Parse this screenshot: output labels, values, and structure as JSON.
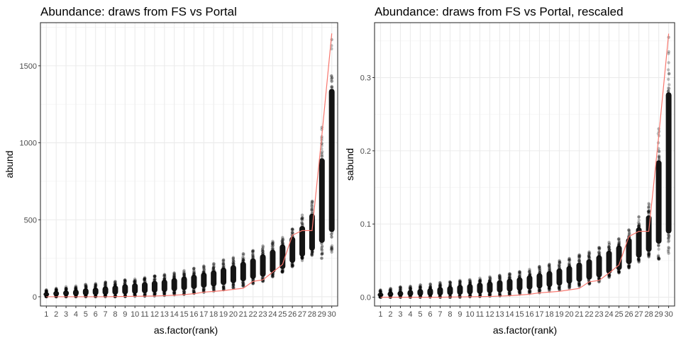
{
  "chart_data": [
    {
      "type": "scatter",
      "title": "Abundance: draws from FS vs Portal",
      "xlabel": "as.factor(rank)",
      "ylabel": "abund",
      "categories": [
        "1",
        "2",
        "3",
        "4",
        "5",
        "6",
        "7",
        "8",
        "9",
        "10",
        "11",
        "12",
        "13",
        "14",
        "15",
        "16",
        "17",
        "18",
        "19",
        "20",
        "21",
        "22",
        "23",
        "24",
        "25",
        "26",
        "27",
        "28",
        "29",
        "30"
      ],
      "ylim": [
        -60,
        1780
      ],
      "yticks": [
        0,
        500,
        1000,
        1500
      ],
      "grid": true,
      "point_color": "#000000",
      "line_color": "#F8766D",
      "series": [
        {
          "kind": "points-range",
          "min": [
            0,
            0,
            0,
            0,
            0,
            0,
            0,
            0,
            0,
            2,
            3,
            5,
            8,
            12,
            16,
            22,
            28,
            35,
            45,
            55,
            70,
            85,
            100,
            130,
            160,
            195,
            235,
            270,
            250,
            290
          ],
          "max": [
            45,
            55,
            65,
            70,
            80,
            85,
            95,
            100,
            110,
            115,
            125,
            135,
            145,
            155,
            170,
            185,
            200,
            215,
            240,
            255,
            280,
            300,
            330,
            360,
            385,
            440,
            530,
            620,
            1100,
            1670
          ],
          "dense_min": [
            2,
            3,
            4,
            5,
            7,
            9,
            11,
            13,
            15,
            18,
            22,
            26,
            30,
            36,
            42,
            50,
            58,
            66,
            76,
            88,
            100,
            115,
            130,
            155,
            180,
            220,
            260,
            300,
            350,
            420
          ],
          "dense_max": [
            30,
            38,
            42,
            48,
            55,
            60,
            68,
            74,
            82,
            88,
            96,
            104,
            112,
            122,
            132,
            144,
            158,
            172,
            190,
            206,
            228,
            250,
            276,
            306,
            340,
            390,
            460,
            540,
            900,
            1350
          ]
        },
        {
          "kind": "line",
          "values": [
            0,
            0,
            0,
            0,
            0,
            0,
            0,
            1,
            2,
            3,
            4,
            5,
            7,
            10,
            14,
            20,
            30,
            35,
            40,
            48,
            55,
            100,
            110,
            160,
            210,
            400,
            430,
            430,
            1050,
            1710
          ]
        }
      ]
    },
    {
      "type": "scatter",
      "title": "Abundance: draws from FS vs Portal, rescaled",
      "xlabel": "as.factor(rank)",
      "ylabel": "sabund",
      "categories": [
        "1",
        "2",
        "3",
        "4",
        "5",
        "6",
        "7",
        "8",
        "9",
        "10",
        "11",
        "12",
        "13",
        "14",
        "15",
        "16",
        "17",
        "18",
        "19",
        "20",
        "21",
        "22",
        "23",
        "24",
        "25",
        "26",
        "27",
        "28",
        "29",
        "30"
      ],
      "ylim": [
        -0.012,
        0.375
      ],
      "yticks": [
        0.0,
        0.1,
        0.2,
        0.3
      ],
      "ytick_labels": [
        "0.0",
        "0.1",
        "0.2",
        "0.3"
      ],
      "grid": true,
      "point_color": "#000000",
      "line_color": "#F8766D",
      "series": [
        {
          "kind": "points-range",
          "min": [
            0,
            0,
            0,
            0,
            0,
            0,
            0,
            0,
            0,
            0.0005,
            0.001,
            0.0015,
            0.002,
            0.003,
            0.004,
            0.005,
            0.006,
            0.008,
            0.01,
            0.012,
            0.015,
            0.018,
            0.021,
            0.027,
            0.033,
            0.04,
            0.048,
            0.055,
            0.052,
            0.06
          ],
          "max": [
            0.01,
            0.012,
            0.014,
            0.015,
            0.017,
            0.018,
            0.02,
            0.021,
            0.023,
            0.024,
            0.026,
            0.028,
            0.03,
            0.032,
            0.035,
            0.038,
            0.042,
            0.045,
            0.05,
            0.053,
            0.058,
            0.062,
            0.068,
            0.075,
            0.08,
            0.092,
            0.11,
            0.128,
            0.23,
            0.355
          ],
          "dense_min": [
            0.0005,
            0.0008,
            0.001,
            0.0012,
            0.0015,
            0.0018,
            0.0022,
            0.0027,
            0.0032,
            0.0038,
            0.0045,
            0.0054,
            0.0063,
            0.0075,
            0.0088,
            0.0104,
            0.012,
            0.0137,
            0.0158,
            0.0183,
            0.0208,
            0.024,
            0.027,
            0.032,
            0.037,
            0.045,
            0.054,
            0.062,
            0.073,
            0.087
          ],
          "dense_max": [
            0.0062,
            0.0079,
            0.0087,
            0.01,
            0.0114,
            0.0125,
            0.0141,
            0.0154,
            0.017,
            0.0183,
            0.02,
            0.0216,
            0.0233,
            0.0254,
            0.0274,
            0.03,
            0.0329,
            0.0358,
            0.0395,
            0.0428,
            0.0474,
            0.052,
            0.0574,
            0.0636,
            0.0707,
            0.081,
            0.0956,
            0.112,
            0.187,
            0.28
          ]
        },
        {
          "kind": "line",
          "values": [
            0,
            0,
            0,
            0,
            0,
            0,
            0,
            0.0002,
            0.0004,
            0.0006,
            0.0008,
            0.001,
            0.0015,
            0.002,
            0.003,
            0.004,
            0.006,
            0.007,
            0.008,
            0.01,
            0.012,
            0.021,
            0.023,
            0.033,
            0.044,
            0.083,
            0.09,
            0.09,
            0.22,
            0.36
          ]
        }
      ]
    }
  ]
}
